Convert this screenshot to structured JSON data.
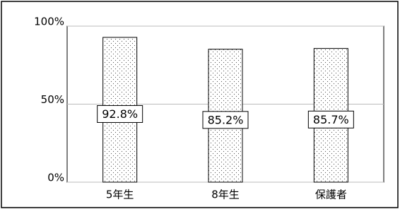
{
  "chart_data": {
    "type": "bar",
    "categories": [
      "5年生",
      "8年生",
      "保護者"
    ],
    "values": [
      92.8,
      85.2,
      85.7
    ],
    "value_labels": [
      "92.8%",
      "85.2%",
      "85.7%"
    ],
    "color": "#000000",
    "ylim": [
      0,
      100
    ],
    "yticks": [
      {
        "value": 0,
        "label": "0%"
      },
      {
        "value": 50,
        "label": "50%"
      },
      {
        "value": 100,
        "label": "100%"
      }
    ],
    "grid": true
  }
}
